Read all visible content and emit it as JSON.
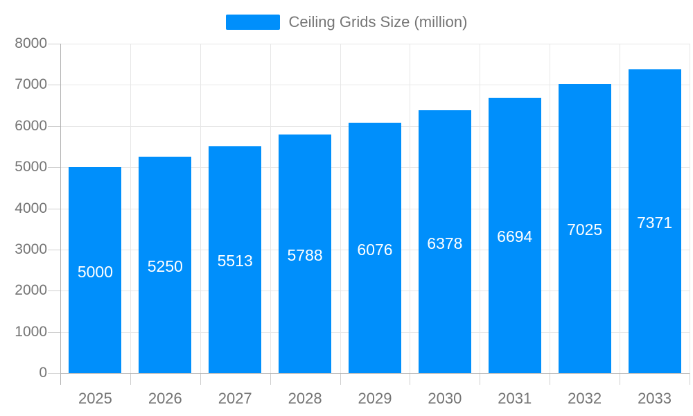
{
  "chart_data": {
    "type": "bar",
    "title": "Ceiling Grids Size (million)",
    "categories": [
      "2025",
      "2026",
      "2027",
      "2028",
      "2029",
      "2030",
      "2031",
      "2032",
      "2033"
    ],
    "series": [
      {
        "name": "Ceiling Grids Size (million)",
        "values": [
          5000,
          5250,
          5513,
          5788,
          6076,
          6378,
          6694,
          7025,
          7371
        ]
      }
    ],
    "xlabel": "",
    "ylabel": "",
    "ylim": [
      0,
      8000
    ],
    "y_ticks": [
      0,
      1000,
      2000,
      3000,
      4000,
      5000,
      6000,
      7000,
      8000
    ],
    "grid": true,
    "legend_position": "top",
    "bar_value_labels_shown": true,
    "colors": {
      "bar": "#008FFB",
      "bar_label_text": "#ffffff",
      "axis_text": "#757575",
      "legend_text": "#757575",
      "gridline": "#e7e7e7",
      "axis_line": "#b3b3b3",
      "tick": "#cfcfcf",
      "background": "#ffffff"
    }
  }
}
